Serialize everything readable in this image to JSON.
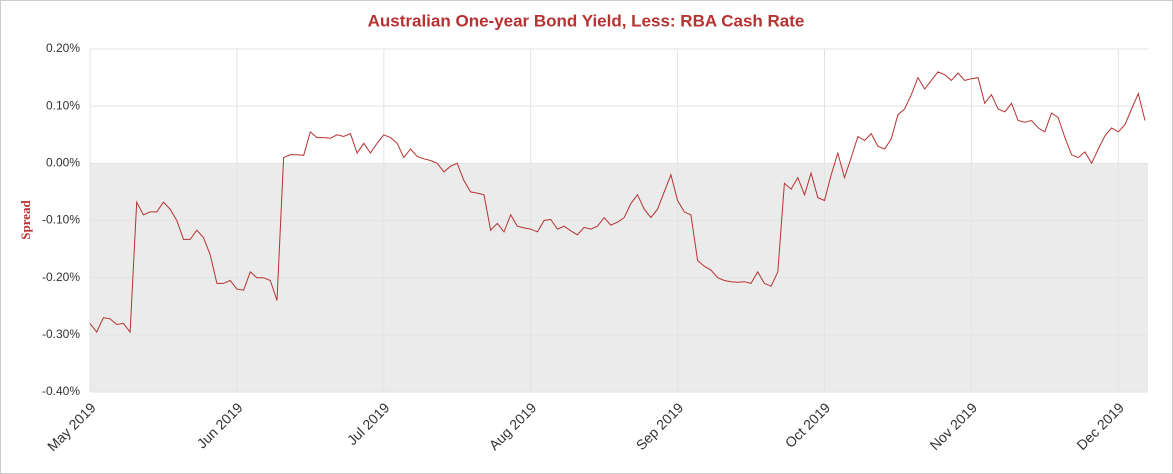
{
  "chart_data": {
    "type": "line",
    "title": "Australian One-year Bond Yield, Less: RBA Cash Rate",
    "y_label": "Spread",
    "categories": [
      "May 2019",
      null,
      null,
      null,
      null,
      null,
      null,
      null,
      null,
      null,
      null,
      null,
      null,
      null,
      null,
      null,
      null,
      null,
      null,
      null,
      null,
      null,
      "Jun 2019",
      null,
      null,
      null,
      null,
      null,
      null,
      null,
      null,
      null,
      null,
      null,
      null,
      null,
      null,
      null,
      null,
      null,
      null,
      null,
      null,
      null,
      "Jul 2019",
      null,
      null,
      null,
      null,
      null,
      null,
      null,
      null,
      null,
      null,
      null,
      null,
      null,
      null,
      null,
      null,
      null,
      null,
      null,
      null,
      null,
      "Aug 2019",
      null,
      null,
      null,
      null,
      null,
      null,
      null,
      null,
      null,
      null,
      null,
      null,
      null,
      null,
      null,
      null,
      null,
      null,
      null,
      null,
      null,
      "Sep 2019",
      null,
      null,
      null,
      null,
      null,
      null,
      null,
      null,
      null,
      null,
      null,
      null,
      null,
      null,
      null,
      null,
      null,
      null,
      null,
      null,
      null,
      "Oct 2019",
      null,
      null,
      null,
      null,
      null,
      null,
      null,
      null,
      null,
      null,
      null,
      null,
      null,
      null,
      null,
      null,
      null,
      null,
      null,
      null,
      null,
      "Nov 2019",
      null,
      null,
      null,
      null,
      null,
      null,
      null,
      null,
      null,
      null,
      null,
      null,
      null,
      null,
      null,
      null,
      null,
      null,
      null,
      null,
      null,
      "Dec 2019",
      null,
      null,
      null,
      null
    ],
    "series": [
      {
        "name": "Spread",
        "color": "#b83232",
        "values": [
          -0.28,
          -0.295,
          -0.27,
          -0.272,
          -0.282,
          -0.28,
          -0.295,
          -0.068,
          -0.09,
          -0.085,
          -0.085,
          -0.068,
          -0.08,
          -0.1,
          -0.133,
          -0.133,
          -0.117,
          -0.13,
          -0.16,
          -0.21,
          -0.21,
          -0.205,
          -0.22,
          -0.222,
          -0.19,
          -0.2,
          -0.2,
          -0.205,
          -0.24,
          0.01,
          0.015,
          0.015,
          0.014,
          0.055,
          0.045,
          0.045,
          0.044,
          0.05,
          0.047,
          0.052,
          0.018,
          0.035,
          0.018,
          0.035,
          0.05,
          0.045,
          0.035,
          0.01,
          0.025,
          0.012,
          0.008,
          0.005,
          0.0,
          -0.015,
          -0.005,
          0.0,
          -0.03,
          -0.05,
          -0.052,
          -0.055,
          -0.117,
          -0.105,
          -0.12,
          -0.09,
          -0.11,
          -0.113,
          -0.115,
          -0.12,
          -0.1,
          -0.098,
          -0.115,
          -0.11,
          -0.118,
          -0.125,
          -0.112,
          -0.115,
          -0.11,
          -0.095,
          -0.108,
          -0.103,
          -0.095,
          -0.07,
          -0.055,
          -0.08,
          -0.095,
          -0.08,
          -0.05,
          -0.02,
          -0.065,
          -0.085,
          -0.09,
          -0.17,
          -0.18,
          -0.187,
          -0.2,
          -0.205,
          -0.207,
          -0.208,
          -0.207,
          -0.21,
          -0.19,
          -0.21,
          -0.215,
          -0.19,
          -0.035,
          -0.045,
          -0.025,
          -0.055,
          -0.017,
          -0.06,
          -0.065,
          -0.02,
          0.018,
          -0.025,
          0.01,
          0.047,
          0.04,
          0.052,
          0.03,
          0.025,
          0.043,
          0.085,
          0.095,
          0.12,
          0.15,
          0.13,
          0.145,
          0.16,
          0.155,
          0.145,
          0.158,
          0.145,
          0.148,
          0.15,
          0.105,
          0.12,
          0.095,
          0.09,
          0.105,
          0.075,
          0.072,
          0.075,
          0.062,
          0.055,
          0.088,
          0.08,
          0.045,
          0.015,
          0.01,
          0.02,
          0.0,
          0.025,
          0.048,
          0.062,
          0.055,
          0.068,
          0.095,
          0.122,
          0.075
        ]
      }
    ],
    "ylim": [
      -0.4,
      0.2
    ],
    "yticks": [
      {
        "value": -0.4,
        "label": "-0.40%"
      },
      {
        "value": -0.3,
        "label": "-0.30%"
      },
      {
        "value": -0.2,
        "label": "-0.20%"
      },
      {
        "value": -0.1,
        "label": "-0.10%"
      },
      {
        "value": 0,
        "label": "0.00%"
      },
      {
        "value": 0.1,
        "label": "0.10%"
      },
      {
        "value": 0.2,
        "label": "0.20%"
      }
    ],
    "grid": true
  }
}
